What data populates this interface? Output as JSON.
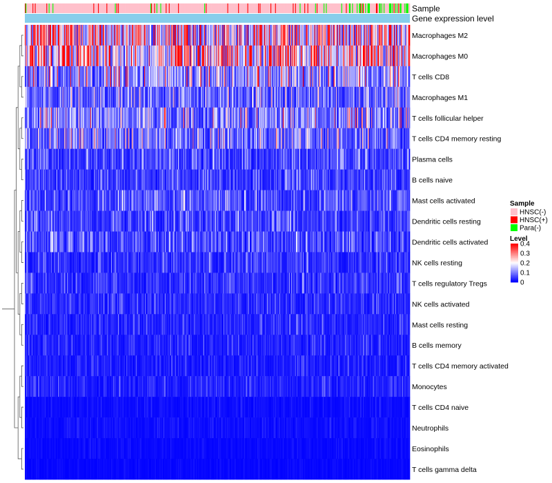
{
  "chart_data": {
    "type": "heatmap",
    "title": "",
    "annotation_tracks": [
      {
        "label": "Sample",
        "kind": "categorical",
        "categories": [
          "HNSC(-)",
          "HNSC(+)",
          "Para(-)"
        ]
      },
      {
        "label": "Gene expression level",
        "kind": "constant",
        "color": "#87CEEB"
      }
    ],
    "rows": [
      "Macrophages M2",
      "Macrophages M0",
      "T cells CD8",
      "Macrophages M1",
      "T cells follicular helper",
      "T cells CD4 memory resting",
      "Plasma cells",
      "B cells naive",
      "Mast cells activated",
      "Dendritic cells resting",
      "Dendritic cells activated",
      "NK cells resting",
      "T cells regulatory  Tregs",
      "NK cells activated",
      "Mast cells resting",
      "B cells memory",
      "T cells CD4 memory activated",
      "Monocytes",
      "T cells CD4 naive",
      "Neutrophils",
      "Eosinophils",
      "T cells gamma delta"
    ],
    "row_mean_level": [
      0.26,
      0.28,
      0.14,
      0.09,
      0.12,
      0.1,
      0.06,
      0.05,
      0.07,
      0.055,
      0.06,
      0.045,
      0.045,
      0.035,
      0.035,
      0.03,
      0.025,
      0.03,
      0.012,
      0.012,
      0.008,
      0.006
    ],
    "column_count": 500,
    "sample_proportions": {
      "HNSC(-)": 0.84,
      "HNSC(+)": 0.09,
      "Para(-)": 0.07
    },
    "legend": {
      "sample_title": "Sample",
      "sample_items": [
        {
          "label": "HNSC(-)",
          "color": "#FFC0CB"
        },
        {
          "label": "HNSC(+)",
          "color": "#FF0000"
        },
        {
          "label": "Para(-)",
          "color": "#00FF00"
        }
      ],
      "level_title": "Level",
      "level_ticks": [
        "0.4",
        "0.3",
        "0.2",
        "0.1",
        "0"
      ],
      "level_range": [
        0,
        0.4
      ],
      "colors": {
        "low": "#0000FF",
        "mid": "#FFFFFF",
        "high": "#FF0000"
      }
    }
  }
}
